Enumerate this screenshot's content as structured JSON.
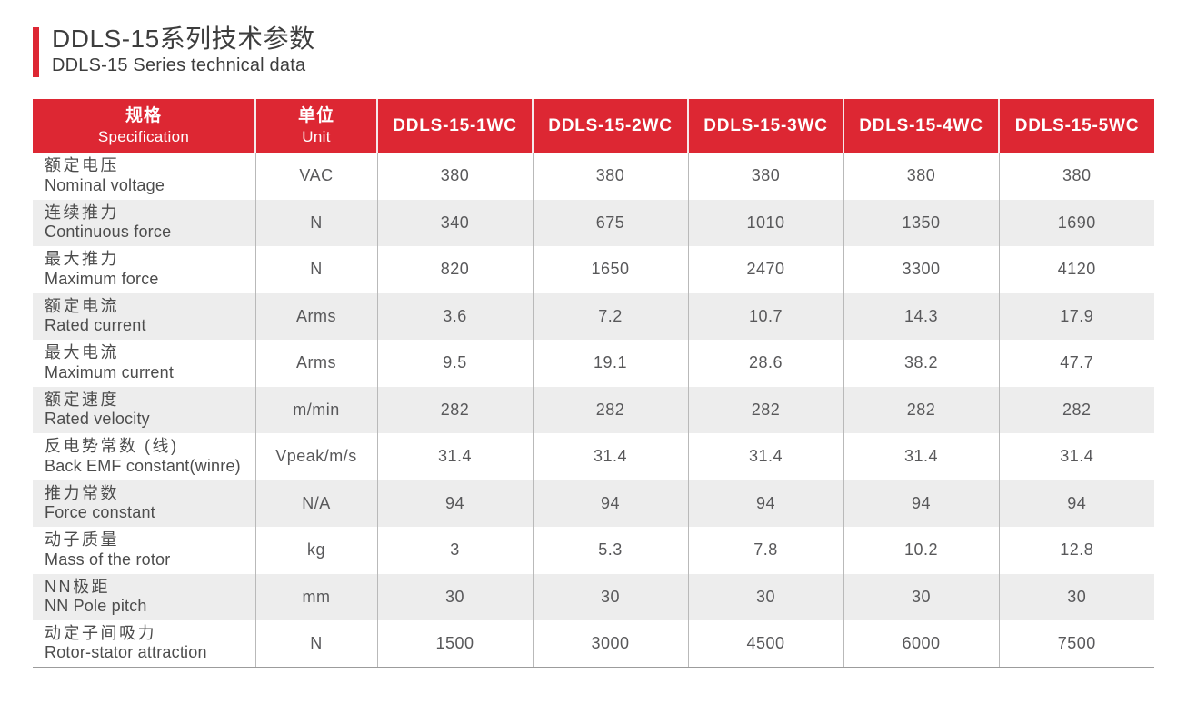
{
  "page": {
    "title_zh": "DDLS-15系列技术参数",
    "title_en": "DDLS-15 Series technical data"
  },
  "colors": {
    "accent_red": "#dd2733",
    "row_stripe_gray": "#ededed",
    "bottom_border_gray": "#9c9c9c"
  },
  "table": {
    "spec_header": {
      "zh": "规格",
      "en": "Specification"
    },
    "unit_header": {
      "zh": "单位",
      "en": "Unit"
    },
    "model_columns": [
      "DDLS-15-1WC",
      "DDLS-15-2WC",
      "DDLS-15-3WC",
      "DDLS-15-4WC",
      "DDLS-15-5WC"
    ],
    "rows": [
      {
        "zh": "额定电压",
        "en": "Nominal voltage",
        "unit": "VAC",
        "values": [
          "380",
          "380",
          "380",
          "380",
          "380"
        ]
      },
      {
        "zh": "连续推力",
        "en": "Continuous force",
        "unit": "N",
        "values": [
          "340",
          "675",
          "1010",
          "1350",
          "1690"
        ]
      },
      {
        "zh": "最大推力",
        "en": "Maximum force",
        "unit": "N",
        "values": [
          "820",
          "1650",
          "2470",
          "3300",
          "4120"
        ]
      },
      {
        "zh": "额定电流",
        "en": "Rated current",
        "unit": "Arms",
        "values": [
          "3.6",
          "7.2",
          "10.7",
          "14.3",
          "17.9"
        ]
      },
      {
        "zh": "最大电流",
        "en": "Maximum current",
        "unit": "Arms",
        "values": [
          "9.5",
          "19.1",
          "28.6",
          "38.2",
          "47.7"
        ]
      },
      {
        "zh": "额定速度",
        "en": "Rated velocity",
        "unit": "m/min",
        "values": [
          "282",
          "282",
          "282",
          "282",
          "282"
        ]
      },
      {
        "zh": "反电势常数 (线)",
        "en": "Back EMF constant(winre)",
        "unit": "Vpeak/m/s",
        "values": [
          "31.4",
          "31.4",
          "31.4",
          "31.4",
          "31.4"
        ]
      },
      {
        "zh": "推力常数",
        "en": "Force constant",
        "unit": "N/A",
        "values": [
          "94",
          "94",
          "94",
          "94",
          "94"
        ]
      },
      {
        "zh": "动子质量",
        "en": "Mass of the rotor",
        "unit": "kg",
        "values": [
          "3",
          "5.3",
          "7.8",
          "10.2",
          "12.8"
        ]
      },
      {
        "zh": "NN极距",
        "en": "NN Pole pitch",
        "unit": "mm",
        "values": [
          "30",
          "30",
          "30",
          "30",
          "30"
        ]
      },
      {
        "zh": "动定子间吸力",
        "en": "Rotor-stator attraction",
        "unit": "N",
        "values": [
          "1500",
          "3000",
          "4500",
          "6000",
          "7500"
        ]
      }
    ]
  }
}
